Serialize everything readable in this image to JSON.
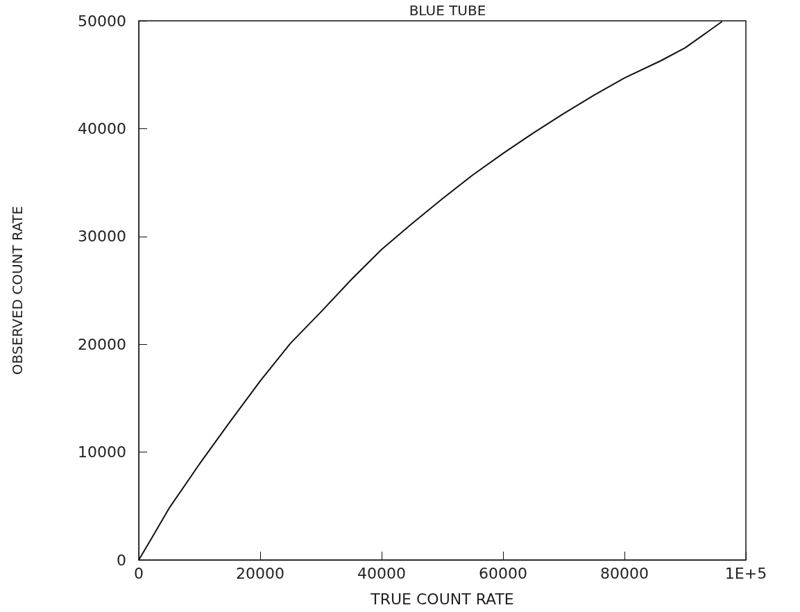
{
  "chart_data": {
    "type": "line",
    "title": "BLUE TUBE",
    "xlabel": "TRUE COUNT RATE",
    "ylabel": "OBSERVED COUNT RATE",
    "x": [
      0,
      2000,
      5000,
      10000,
      15000,
      20000,
      25000,
      30000,
      35000,
      40000,
      45000,
      50000,
      55000,
      60000,
      65000,
      70000,
      75000,
      80000,
      86000,
      90000,
      96000
    ],
    "series": [
      {
        "color": "#111111",
        "values": [
          0,
          1900,
          4800,
          8900,
          12800,
          16600,
          20100,
          23000,
          26000,
          28800,
          31200,
          33500,
          35700,
          37700,
          39600,
          41400,
          43100,
          44700,
          46300,
          47500,
          49900
        ]
      }
    ],
    "xlim": [
      0,
      100000
    ],
    "ylim": [
      0,
      50000
    ],
    "xticks": [
      0,
      20000,
      40000,
      60000,
      80000,
      {
        "value": 100000,
        "label": "1E+5"
      }
    ],
    "yticks": [
      0,
      10000,
      20000,
      30000,
      40000,
      50000
    ],
    "grid": false,
    "marker": "none",
    "line_style": "solid"
  }
}
